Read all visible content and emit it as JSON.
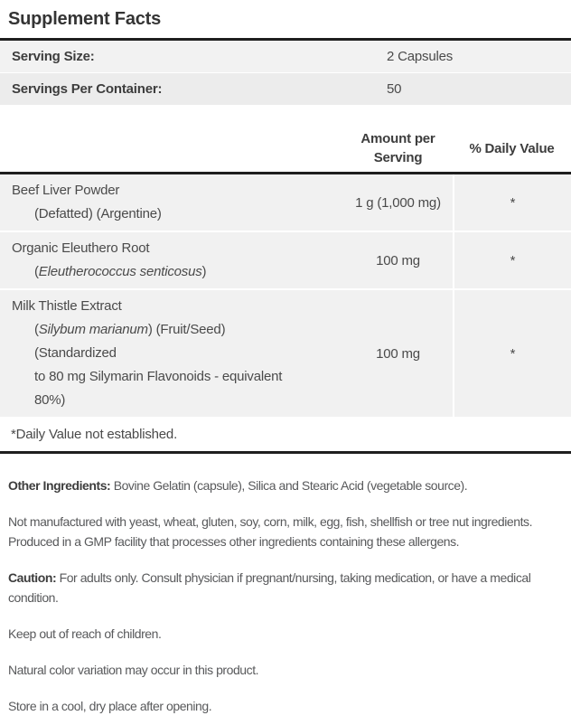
{
  "page": {
    "title": "Supplement Facts"
  },
  "colors": {
    "rule": "#1e1e1e",
    "row_bg": "#f1f1f1",
    "row_bg_alt": "#ececec",
    "text": "#4a4a4a",
    "notes_text": "#58595b"
  },
  "serving": {
    "rows": [
      {
        "label": "Serving Size:",
        "value": "2 Capsules"
      },
      {
        "label": "Servings Per Container:",
        "value": "50"
      }
    ]
  },
  "table": {
    "amount_header": "Amount per Serving",
    "dv_header": "% Daily Value",
    "rows": [
      {
        "lines": [
          {
            "segments": [
              {
                "text": "Beef Liver Powder",
                "italic": false
              }
            ]
          },
          {
            "segments": [
              {
                "text": "(Defatted) (Argentine)",
                "italic": false
              }
            ]
          }
        ],
        "amount": "1 g (1,000 mg)",
        "dv": "*"
      },
      {
        "lines": [
          {
            "segments": [
              {
                "text": "Organic Eleuthero Root",
                "italic": false
              }
            ]
          },
          {
            "segments": [
              {
                "text": "(",
                "italic": false
              },
              {
                "text": "Eleutherococcus senticosus",
                "italic": true
              },
              {
                "text": ")",
                "italic": false
              }
            ]
          }
        ],
        "amount": "100 mg",
        "dv": "*"
      },
      {
        "lines": [
          {
            "segments": [
              {
                "text": "Milk Thistle Extract",
                "italic": false
              }
            ]
          },
          {
            "segments": [
              {
                "text": "(",
                "italic": false
              },
              {
                "text": "Silybum marianum",
                "italic": true
              },
              {
                "text": ") (Fruit/Seed)",
                "italic": false
              }
            ]
          },
          {
            "segments": [
              {
                "text": "(Standardized",
                "italic": false
              }
            ]
          },
          {
            "segments": [
              {
                "text": "to 80 mg Silymarin Flavonoids - equivalent",
                "italic": false
              }
            ]
          },
          {
            "segments": [
              {
                "text": "80%)",
                "italic": false
              }
            ]
          }
        ],
        "amount": "100 mg",
        "dv": "*"
      }
    ],
    "footnote": "*Daily Value not established."
  },
  "notes": [
    {
      "bold": "Other Ingredients:",
      "text": " Bovine Gelatin (capsule), Silica and Stearic Acid (vegetable source)."
    },
    {
      "bold": "",
      "text": "Not manufactured with yeast, wheat, gluten, soy, corn, milk, egg, fish, shellfish or tree nut ingredients. Produced in a GMP facility that processes other ingredients containing these allergens."
    },
    {
      "bold": "Caution:",
      "text": " For adults only. Consult physician if pregnant/nursing, taking medication, or have a medical condition."
    },
    {
      "bold": "",
      "text": "Keep out of reach of children."
    },
    {
      "bold": "",
      "text": "Natural color variation may occur in this product."
    },
    {
      "bold": "",
      "text": "Store in a cool, dry place after opening."
    }
  ]
}
